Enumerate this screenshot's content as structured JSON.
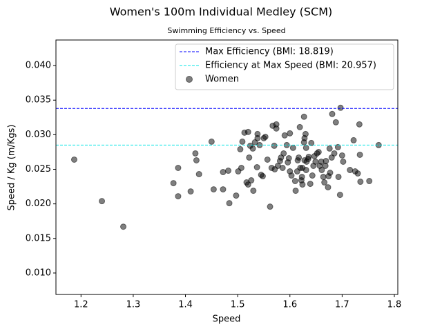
{
  "chart_data": {
    "type": "scatter",
    "title": "Women's 100m Individual Medley (SCM)",
    "subtitle": "Swimming Efficiency vs. Speed",
    "x_label": "Speed",
    "y_label": "Speed / Kg (m/Kgs)",
    "xlim": [
      1.152,
      1.8066
    ],
    "ylim": [
      0.0069,
      0.0437
    ],
    "xticks": [
      1.2,
      1.3,
      1.4,
      1.5,
      1.6,
      1.7,
      1.8
    ],
    "yticks": [
      {
        "value": 0.01,
        "label": "0.010"
      },
      0.015,
      {
        "value": 0.02,
        "label": "0.020"
      },
      0.025,
      {
        "value": 0.03,
        "label": "0.030"
      },
      0.035,
      {
        "value": 0.04,
        "label": "0.040"
      }
    ],
    "legend": "upper right",
    "grid": false,
    "hlines": [
      {
        "name": "Max Efficiency (BMI: 18.819)",
        "value": 0.0338,
        "color": "#0000ff"
      },
      {
        "name": "Efficiency at Max Speed (BMI: 20.957)",
        "value": 0.0285,
        "color": "#00e5e5"
      }
    ],
    "series": [
      {
        "name": "Women",
        "color": "#000000",
        "opacity": 0.5,
        "x": [
          1.187,
          1.24,
          1.281,
          1.377,
          1.386,
          1.386,
          1.41,
          1.419,
          1.421,
          1.426,
          1.45,
          1.454,
          1.472,
          1.472,
          1.482,
          1.484,
          1.497,
          1.501,
          1.505,
          1.507,
          1.509,
          1.513,
          1.517,
          1.52,
          1.52,
          1.522,
          1.524,
          1.526,
          1.529,
          1.53,
          1.533,
          1.537,
          1.538,
          1.538,
          1.542,
          1.545,
          1.548,
          1.55,
          1.553,
          1.557,
          1.562,
          1.565,
          1.567,
          1.57,
          1.571,
          1.574,
          1.574,
          1.577,
          1.581,
          1.583,
          1.586,
          1.588,
          1.59,
          1.594,
          1.596,
          1.598,
          1.6,
          1.6,
          1.603,
          1.606,
          1.61,
          1.611,
          1.614,
          1.615,
          1.617,
          1.619,
          1.62,
          1.622,
          1.623,
          1.624,
          1.624,
          1.627,
          1.627,
          1.628,
          1.628,
          1.63,
          1.631,
          1.631,
          1.632,
          1.635,
          1.636,
          1.639,
          1.641,
          1.643,
          1.645,
          1.647,
          1.649,
          1.652,
          1.655,
          1.657,
          1.66,
          1.661,
          1.664,
          1.666,
          1.668,
          1.669,
          1.673,
          1.674,
          1.676,
          1.677,
          1.68,
          1.681,
          1.685,
          1.688,
          1.692,
          1.693,
          1.696,
          1.697,
          1.7,
          1.702,
          1.715,
          1.722,
          1.725,
          1.73,
          1.733,
          1.734,
          1.735,
          1.752,
          1.77
        ],
        "values": [
          0.0264,
          0.0204,
          0.0167,
          0.023,
          0.0252,
          0.0211,
          0.0218,
          0.0273,
          0.0263,
          0.0243,
          0.029,
          0.0221,
          0.0246,
          0.0221,
          0.0248,
          0.0201,
          0.0212,
          0.0247,
          0.0279,
          0.0252,
          0.029,
          0.0303,
          0.0231,
          0.0304,
          0.0228,
          0.0267,
          0.0284,
          0.0234,
          0.028,
          0.0219,
          0.0289,
          0.0253,
          0.0301,
          0.0295,
          0.0285,
          0.0242,
          0.024,
          0.0295,
          0.0297,
          0.0264,
          0.0196,
          0.0252,
          0.0313,
          0.0284,
          0.025,
          0.0315,
          0.0309,
          0.0255,
          0.0262,
          0.0267,
          0.0252,
          0.0273,
          0.0299,
          0.0285,
          0.026,
          0.0266,
          0.0247,
          0.0302,
          0.0241,
          0.0281,
          0.0233,
          0.0219,
          0.0247,
          0.0263,
          0.0267,
          0.0311,
          0.0252,
          0.0234,
          0.0239,
          0.0228,
          0.0252,
          0.0326,
          0.0289,
          0.0295,
          0.0263,
          0.0301,
          0.0281,
          0.0249,
          0.0261,
          0.0265,
          0.0268,
          0.0229,
          0.0288,
          0.0241,
          0.0255,
          0.0269,
          0.0261,
          0.0273,
          0.0275,
          0.0255,
          0.0261,
          0.0249,
          0.0239,
          0.0231,
          0.0255,
          0.0262,
          0.0224,
          0.024,
          0.028,
          0.0245,
          0.0267,
          0.033,
          0.0273,
          0.0318,
          0.0282,
          0.0239,
          0.0213,
          0.0339,
          0.027,
          0.0261,
          0.0249,
          0.0292,
          0.0247,
          0.0244,
          0.0315,
          0.0271,
          0.0232,
          0.0233,
          0.0285
        ]
      }
    ]
  }
}
